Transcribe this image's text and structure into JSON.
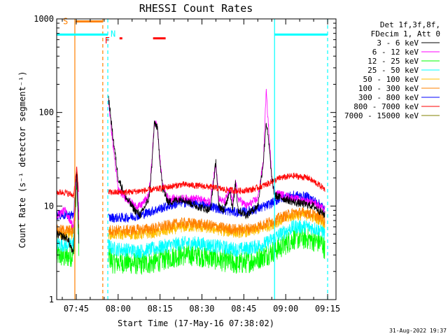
{
  "chart_data": {
    "type": "line",
    "title": "RHESSI Count Rates",
    "xlabel": "Start Time (17-May-16 07:38:02)",
    "ylabel": "Count Rate (s⁻¹ detector segment⁻¹)",
    "y_scale": "log",
    "ylim": [
      1,
      1000
    ],
    "xlim": [
      0,
      100
    ],
    "x_unit": "minutes after 07:38:02",
    "x_ticks": [
      {
        "label": "07:45",
        "value": 7
      },
      {
        "label": "08:00",
        "value": 22
      },
      {
        "label": "08:15",
        "value": 37
      },
      {
        "label": "08:30",
        "value": 52
      },
      {
        "label": "08:45",
        "value": 67
      },
      {
        "label": "09:00",
        "value": 82
      },
      {
        "label": "09:15",
        "value": 97
      }
    ],
    "y_ticks": [
      {
        "label": "1",
        "value": 1
      },
      {
        "label": "10",
        "value": 10
      },
      {
        "label": "100",
        "value": 100
      },
      {
        "label": "1000",
        "value": 1000
      }
    ],
    "legend_header": [
      "Det 1f,3f,8f,",
      "FDecim 1, Att 0"
    ],
    "legend_placement": "right",
    "series": [
      {
        "name": "3 - 6 keV",
        "color": "#000000",
        "points": [
          [
            0,
            5
          ],
          [
            4,
            4.5
          ],
          [
            6,
            3
          ],
          [
            7.2,
            25
          ],
          [
            8,
            3.5
          ],
          [
            9,
            null
          ],
          [
            18.3,
            null
          ],
          [
            18.5,
            150
          ],
          [
            20,
            60
          ],
          [
            22,
            20
          ],
          [
            25,
            12
          ],
          [
            28,
            9
          ],
          [
            30,
            8
          ],
          [
            33,
            12
          ],
          [
            34,
            25
          ],
          [
            35,
            78
          ],
          [
            36,
            70
          ],
          [
            37,
            30
          ],
          [
            38,
            15
          ],
          [
            40,
            11
          ],
          [
            45,
            12
          ],
          [
            50,
            10
          ],
          [
            55,
            9
          ],
          [
            57,
            30
          ],
          [
            58,
            10
          ],
          [
            60,
            9
          ],
          [
            62,
            15
          ],
          [
            63,
            9
          ],
          [
            64,
            18
          ],
          [
            65,
            9
          ],
          [
            68,
            8
          ],
          [
            72,
            10
          ],
          [
            74,
            30
          ],
          [
            75,
            80
          ],
          [
            76,
            45
          ],
          [
            77,
            20
          ],
          [
            78,
            13
          ],
          [
            85,
            11
          ],
          [
            92,
            10
          ],
          [
            96,
            8
          ]
        ]
      },
      {
        "name": "6 - 12 keV",
        "color": "#ff00ff",
        "points": [
          [
            0,
            8
          ],
          [
            3,
            9
          ],
          [
            6,
            6
          ],
          [
            7.2,
            25
          ],
          [
            8,
            7
          ],
          [
            9,
            null
          ],
          [
            18.3,
            null
          ],
          [
            18.5,
            140
          ],
          [
            20,
            50
          ],
          [
            22,
            15
          ],
          [
            25,
            12
          ],
          [
            28,
            10
          ],
          [
            30,
            10
          ],
          [
            33,
            13
          ],
          [
            34,
            28
          ],
          [
            35,
            80
          ],
          [
            36,
            72
          ],
          [
            37,
            30
          ],
          [
            38,
            16
          ],
          [
            40,
            12
          ],
          [
            45,
            12
          ],
          [
            50,
            12
          ],
          [
            55,
            11
          ],
          [
            57,
            30
          ],
          [
            58,
            12
          ],
          [
            60,
            11
          ],
          [
            62,
            15
          ],
          [
            63,
            11
          ],
          [
            64,
            18
          ],
          [
            65,
            12
          ],
          [
            68,
            10
          ],
          [
            72,
            12
          ],
          [
            74,
            30
          ],
          [
            75,
            170
          ],
          [
            76,
            60
          ],
          [
            77,
            20
          ],
          [
            78,
            14
          ],
          [
            85,
            12
          ],
          [
            92,
            11
          ],
          [
            96,
            9
          ]
        ]
      },
      {
        "name": "12 - 25 keV",
        "color": "#00ff00",
        "points": [
          [
            0,
            3
          ],
          [
            3,
            2.8
          ],
          [
            6,
            3
          ],
          [
            7.2,
            20
          ],
          [
            8,
            2.5
          ],
          [
            9,
            null
          ],
          [
            18.3,
            null
          ],
          [
            18.5,
            3
          ],
          [
            20,
            2.5
          ],
          [
            25,
            2.5
          ],
          [
            30,
            2.4
          ],
          [
            35,
            2.5
          ],
          [
            40,
            2.8
          ],
          [
            45,
            3
          ],
          [
            50,
            3
          ],
          [
            55,
            2.8
          ],
          [
            60,
            2.6
          ],
          [
            65,
            2.4
          ],
          [
            70,
            2.6
          ],
          [
            75,
            3
          ],
          [
            80,
            3.6
          ],
          [
            85,
            4.5
          ],
          [
            90,
            4.5
          ],
          [
            95,
            4
          ],
          [
            96,
            3.5
          ]
        ]
      },
      {
        "name": "25 - 50 keV",
        "color": "#00ffff",
        "points": [
          [
            0,
            4
          ],
          [
            3,
            3.8
          ],
          [
            6,
            4
          ],
          [
            7.2,
            22
          ],
          [
            8,
            3.5
          ],
          [
            9,
            null
          ],
          [
            18.3,
            null
          ],
          [
            18.5,
            3.8
          ],
          [
            20,
            3.5
          ],
          [
            25,
            3.4
          ],
          [
            30,
            3.3
          ],
          [
            35,
            3.5
          ],
          [
            40,
            3.8
          ],
          [
            45,
            4
          ],
          [
            50,
            4
          ],
          [
            55,
            3.8
          ],
          [
            60,
            3.6
          ],
          [
            65,
            3.4
          ],
          [
            70,
            3.6
          ],
          [
            75,
            4
          ],
          [
            80,
            5
          ],
          [
            85,
            6
          ],
          [
            90,
            6
          ],
          [
            95,
            5.5
          ],
          [
            96,
            5
          ]
        ]
      },
      {
        "name": "50 - 100 keV",
        "color": "#ffc000",
        "points": [
          [
            0,
            5
          ],
          [
            3,
            5
          ],
          [
            6,
            5
          ],
          [
            7.2,
            22
          ],
          [
            8,
            4.5
          ],
          [
            9,
            null
          ],
          [
            18.3,
            null
          ],
          [
            18.5,
            5
          ],
          [
            25,
            5
          ],
          [
            30,
            5
          ],
          [
            35,
            5.2
          ],
          [
            40,
            5.5
          ],
          [
            45,
            6
          ],
          [
            50,
            6
          ],
          [
            55,
            5.8
          ],
          [
            60,
            5.4
          ],
          [
            65,
            5.2
          ],
          [
            70,
            5.4
          ],
          [
            75,
            6
          ],
          [
            80,
            7
          ],
          [
            85,
            8
          ],
          [
            90,
            8
          ],
          [
            95,
            7
          ],
          [
            96,
            6.5
          ]
        ]
      },
      {
        "name": "100 - 300 keV",
        "color": "#ff8000",
        "points": [
          [
            0,
            5.5
          ],
          [
            3,
            5.5
          ],
          [
            6,
            5.5
          ],
          [
            7.2,
            22
          ],
          [
            8,
            5
          ],
          [
            9,
            null
          ],
          [
            18.3,
            null
          ],
          [
            18.5,
            5.5
          ],
          [
            25,
            5.5
          ],
          [
            30,
            5.6
          ],
          [
            35,
            5.8
          ],
          [
            40,
            6.2
          ],
          [
            45,
            6.6
          ],
          [
            50,
            6.5
          ],
          [
            55,
            6.2
          ],
          [
            60,
            5.8
          ],
          [
            65,
            5.6
          ],
          [
            70,
            5.8
          ],
          [
            75,
            6.5
          ],
          [
            80,
            7.5
          ],
          [
            85,
            8.5
          ],
          [
            90,
            8.5
          ],
          [
            95,
            7.5
          ],
          [
            96,
            7
          ]
        ]
      },
      {
        "name": "300 - 800 keV",
        "color": "#0000ff",
        "points": [
          [
            0,
            8
          ],
          [
            3,
            8
          ],
          [
            6,
            8
          ],
          [
            7.2,
            25
          ],
          [
            8,
            7.5
          ],
          [
            9,
            null
          ],
          [
            18.3,
            null
          ],
          [
            18.5,
            7.5
          ],
          [
            25,
            7.5
          ],
          [
            30,
            8
          ],
          [
            35,
            9
          ],
          [
            40,
            10
          ],
          [
            45,
            11
          ],
          [
            50,
            10.5
          ],
          [
            55,
            10
          ],
          [
            60,
            9
          ],
          [
            65,
            8.5
          ],
          [
            70,
            9
          ],
          [
            75,
            10
          ],
          [
            80,
            12
          ],
          [
            85,
            13
          ],
          [
            90,
            12.5
          ],
          [
            95,
            10
          ],
          [
            96,
            9
          ]
        ]
      },
      {
        "name": "800 - 7000 keV",
        "color": "#ff0000",
        "points": [
          [
            0,
            14
          ],
          [
            3,
            14
          ],
          [
            6,
            13
          ],
          [
            7.2,
            25
          ],
          [
            8,
            13
          ],
          [
            9,
            null
          ],
          [
            18.3,
            null
          ],
          [
            18.5,
            14
          ],
          [
            25,
            14
          ],
          [
            30,
            14.5
          ],
          [
            35,
            15
          ],
          [
            40,
            16
          ],
          [
            45,
            17
          ],
          [
            50,
            16.5
          ],
          [
            55,
            16
          ],
          [
            60,
            15
          ],
          [
            65,
            14.5
          ],
          [
            70,
            15
          ],
          [
            75,
            17
          ],
          [
            80,
            20
          ],
          [
            85,
            21
          ],
          [
            90,
            20
          ],
          [
            95,
            16
          ],
          [
            96,
            15
          ]
        ]
      },
      {
        "name": "7000 - 15000 keV",
        "color": "#808000",
        "points": []
      }
    ],
    "markers": {
      "S": {
        "label": "S",
        "color": "#ff8000",
        "bar": [
          6.5,
          16.5
        ],
        "value": 940
      },
      "N": {
        "label": "N",
        "color": "#00ffff"
      },
      "F": {
        "label": "F",
        "color": "#ff0000"
      },
      "cyan_bars": [
        [
          0,
          18.3
        ],
        [
          78,
          97
        ]
      ],
      "cyan_bar_value": 680,
      "red_bars": [
        [
          22.5,
          23.5
        ],
        [
          34.5,
          39
        ]
      ],
      "red_bar_value": 620,
      "solid_vlines": [
        {
          "x": 6.5,
          "color": "#ff8000"
        },
        {
          "x": 78,
          "color": "#00ffff"
        }
      ],
      "dashed_vlines": [
        {
          "x": 16.5,
          "color": "#ff8000"
        },
        {
          "x": 18.3,
          "color": "#00ffff"
        },
        {
          "x": 97,
          "color": "#00ffff"
        }
      ]
    }
  },
  "footer": {
    "timestamp": "31-Aug-2022 19:37"
  }
}
